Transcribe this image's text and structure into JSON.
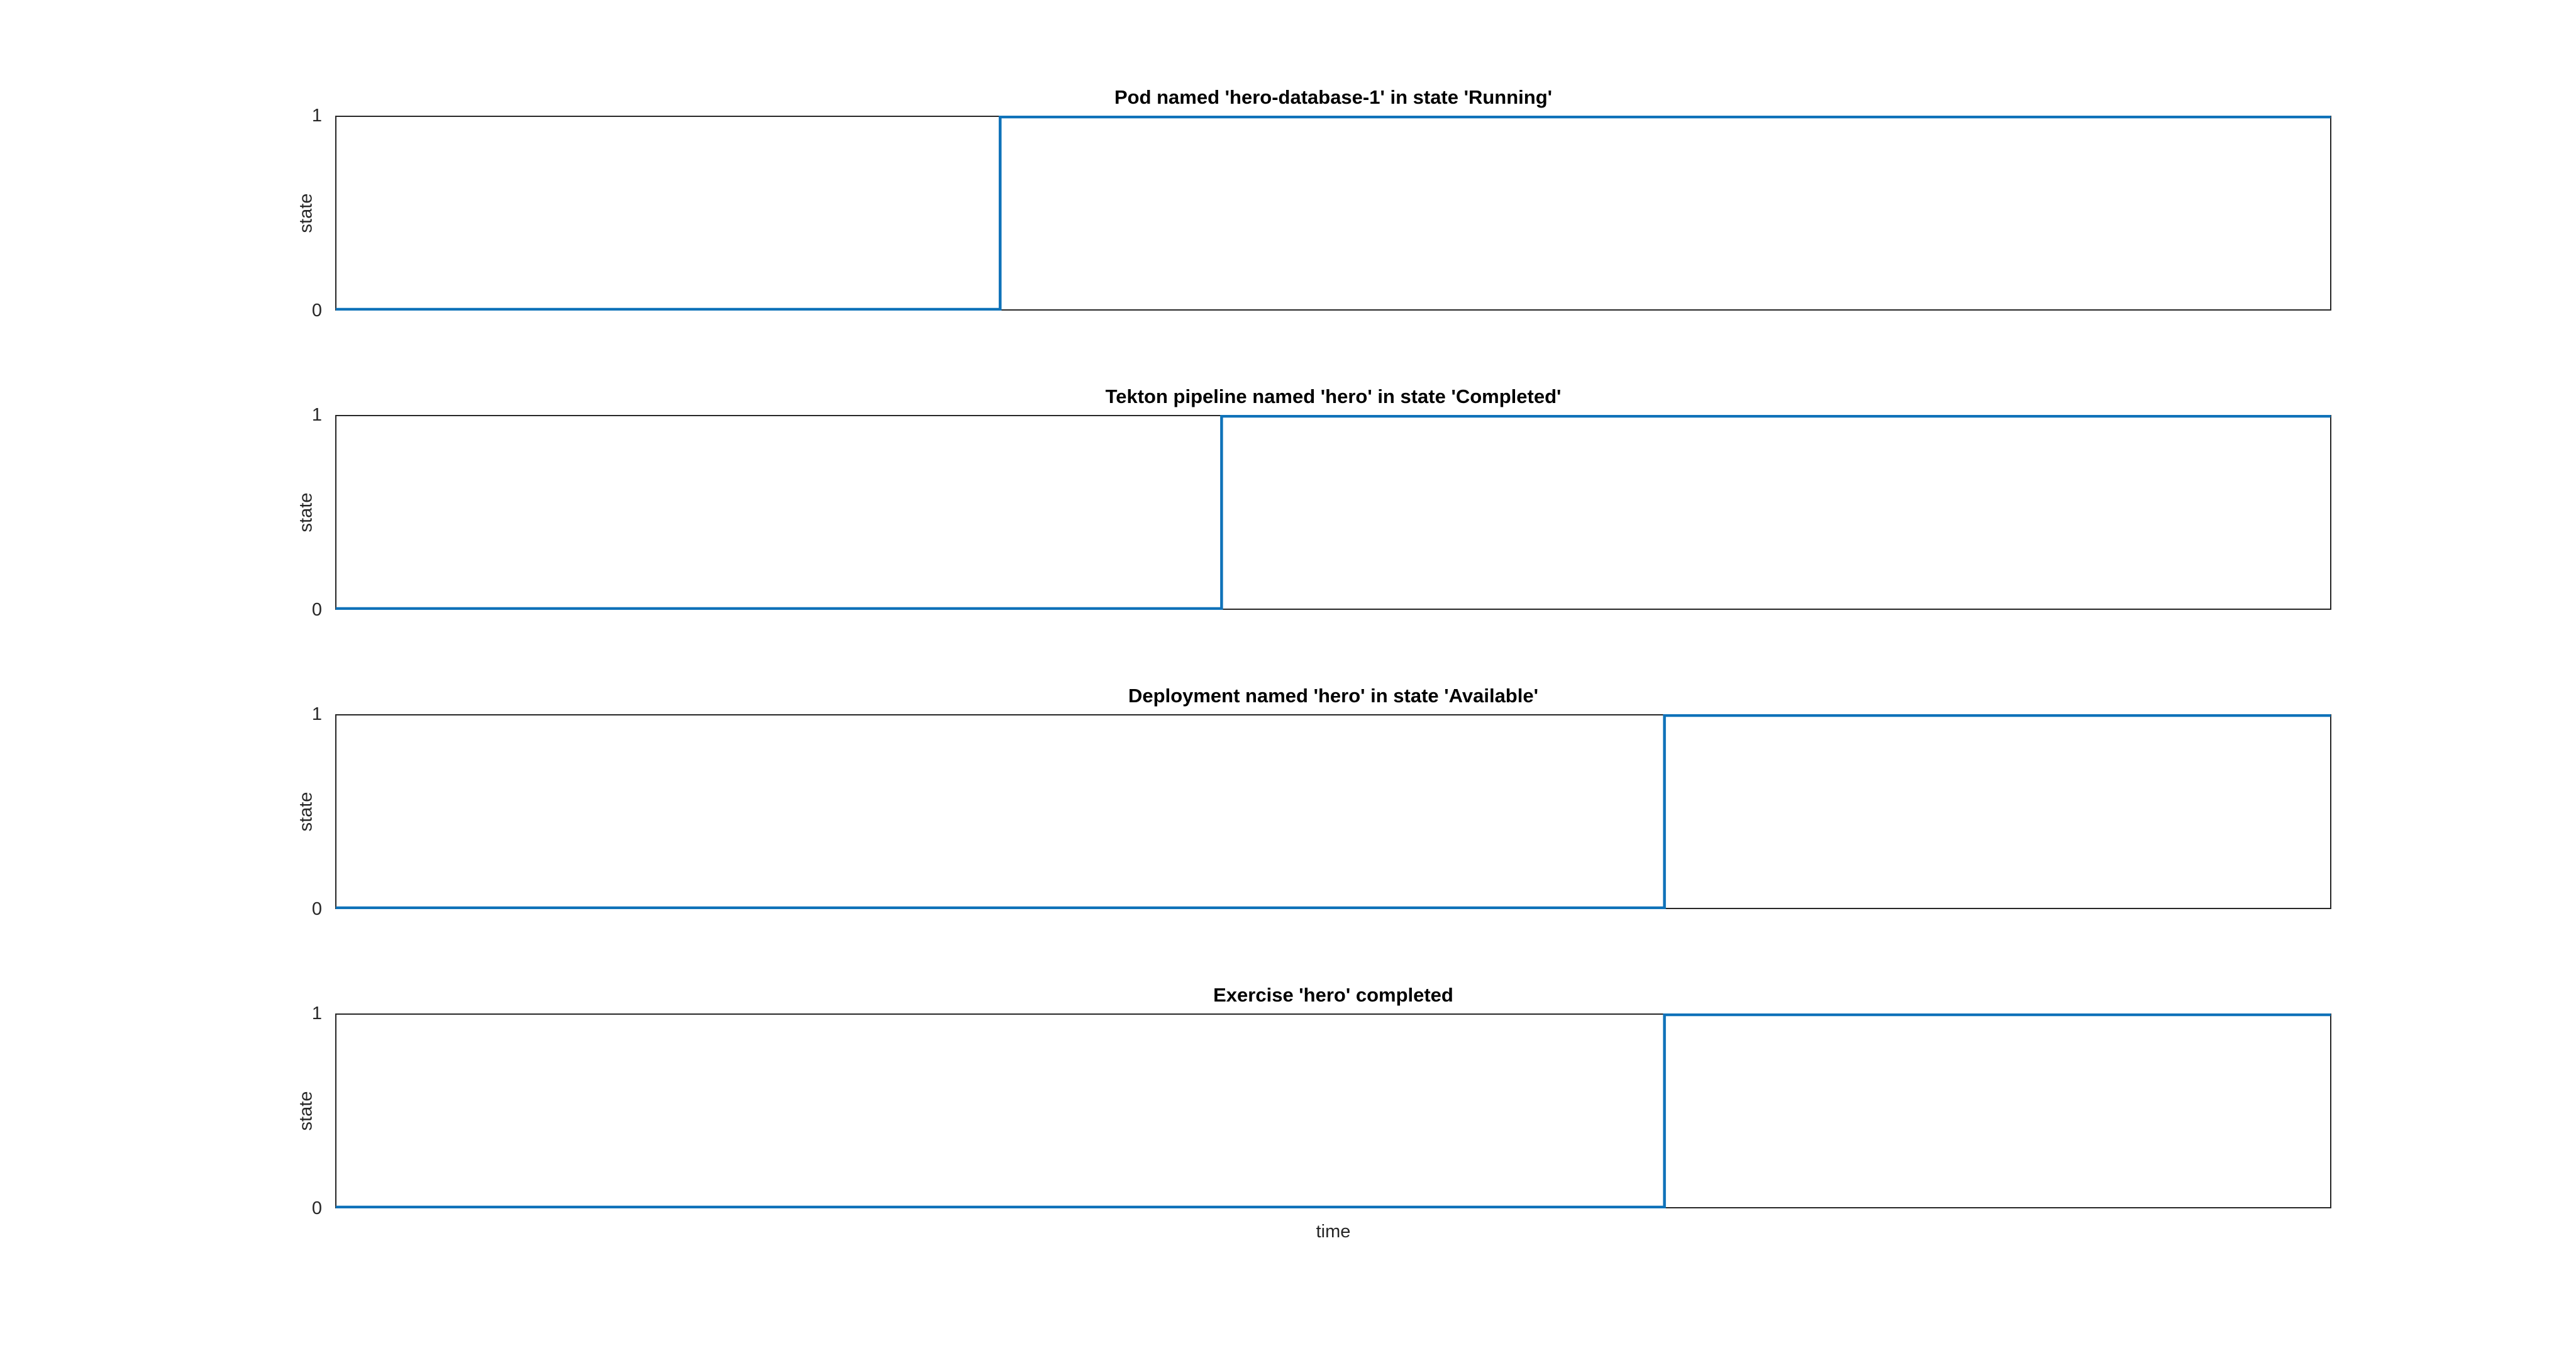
{
  "figure": {
    "background": "#ffffff",
    "accent_color": "#0f72b9",
    "axis_color": "#262626",
    "text_color": "#262626",
    "title_color": "#000000",
    "xlabel": "time"
  },
  "chart_data": [
    {
      "type": "line",
      "subtype": "step",
      "title": "Pod named 'hero-database-1' in state 'Running'",
      "ylabel": "state",
      "xlabel": "",
      "ylim": [
        0,
        1
      ],
      "yticks": [
        "1",
        "0"
      ],
      "xticks": [],
      "grid": false,
      "legend": "none",
      "x_axis_unit": "time (fraction of shown range)",
      "transition_x_fraction": 0.333,
      "series": [
        {
          "name": "state",
          "color": "#0f72b9",
          "points": [
            {
              "x": 0.0,
              "y": 0
            },
            {
              "x": 0.333,
              "y": 0
            },
            {
              "x": 0.333,
              "y": 1
            },
            {
              "x": 1.0,
              "y": 1
            }
          ]
        }
      ]
    },
    {
      "type": "line",
      "subtype": "step",
      "title": "Tekton pipeline named 'hero' in state 'Completed'",
      "ylabel": "state",
      "xlabel": "",
      "ylim": [
        0,
        1
      ],
      "yticks": [
        "1",
        "0"
      ],
      "xticks": [],
      "grid": false,
      "legend": "none",
      "x_axis_unit": "time (fraction of shown range)",
      "transition_x_fraction": 0.444,
      "series": [
        {
          "name": "state",
          "color": "#0f72b9",
          "points": [
            {
              "x": 0.0,
              "y": 0
            },
            {
              "x": 0.444,
              "y": 0
            },
            {
              "x": 0.444,
              "y": 1
            },
            {
              "x": 1.0,
              "y": 1
            }
          ]
        }
      ]
    },
    {
      "type": "line",
      "subtype": "step",
      "title": "Deployment named 'hero' in state 'Available'",
      "ylabel": "state",
      "xlabel": "",
      "ylim": [
        0,
        1
      ],
      "yticks": [
        "1",
        "0"
      ],
      "xticks": [],
      "grid": false,
      "legend": "none",
      "x_axis_unit": "time (fraction of shown range)",
      "transition_x_fraction": 0.666,
      "series": [
        {
          "name": "state",
          "color": "#0f72b9",
          "points": [
            {
              "x": 0.0,
              "y": 0
            },
            {
              "x": 0.666,
              "y": 0
            },
            {
              "x": 0.666,
              "y": 1
            },
            {
              "x": 1.0,
              "y": 1
            }
          ]
        }
      ]
    },
    {
      "type": "line",
      "subtype": "step",
      "title": "Exercise 'hero' completed",
      "ylabel": "state",
      "xlabel": "time",
      "ylim": [
        0,
        1
      ],
      "yticks": [
        "1",
        "0"
      ],
      "xticks": [],
      "grid": false,
      "legend": "none",
      "x_axis_unit": "time (fraction of shown range)",
      "transition_x_fraction": 0.666,
      "series": [
        {
          "name": "state",
          "color": "#0f72b9",
          "points": [
            {
              "x": 0.0,
              "y": 0
            },
            {
              "x": 0.666,
              "y": 0
            },
            {
              "x": 0.666,
              "y": 1
            },
            {
              "x": 1.0,
              "y": 1
            }
          ]
        }
      ]
    }
  ]
}
